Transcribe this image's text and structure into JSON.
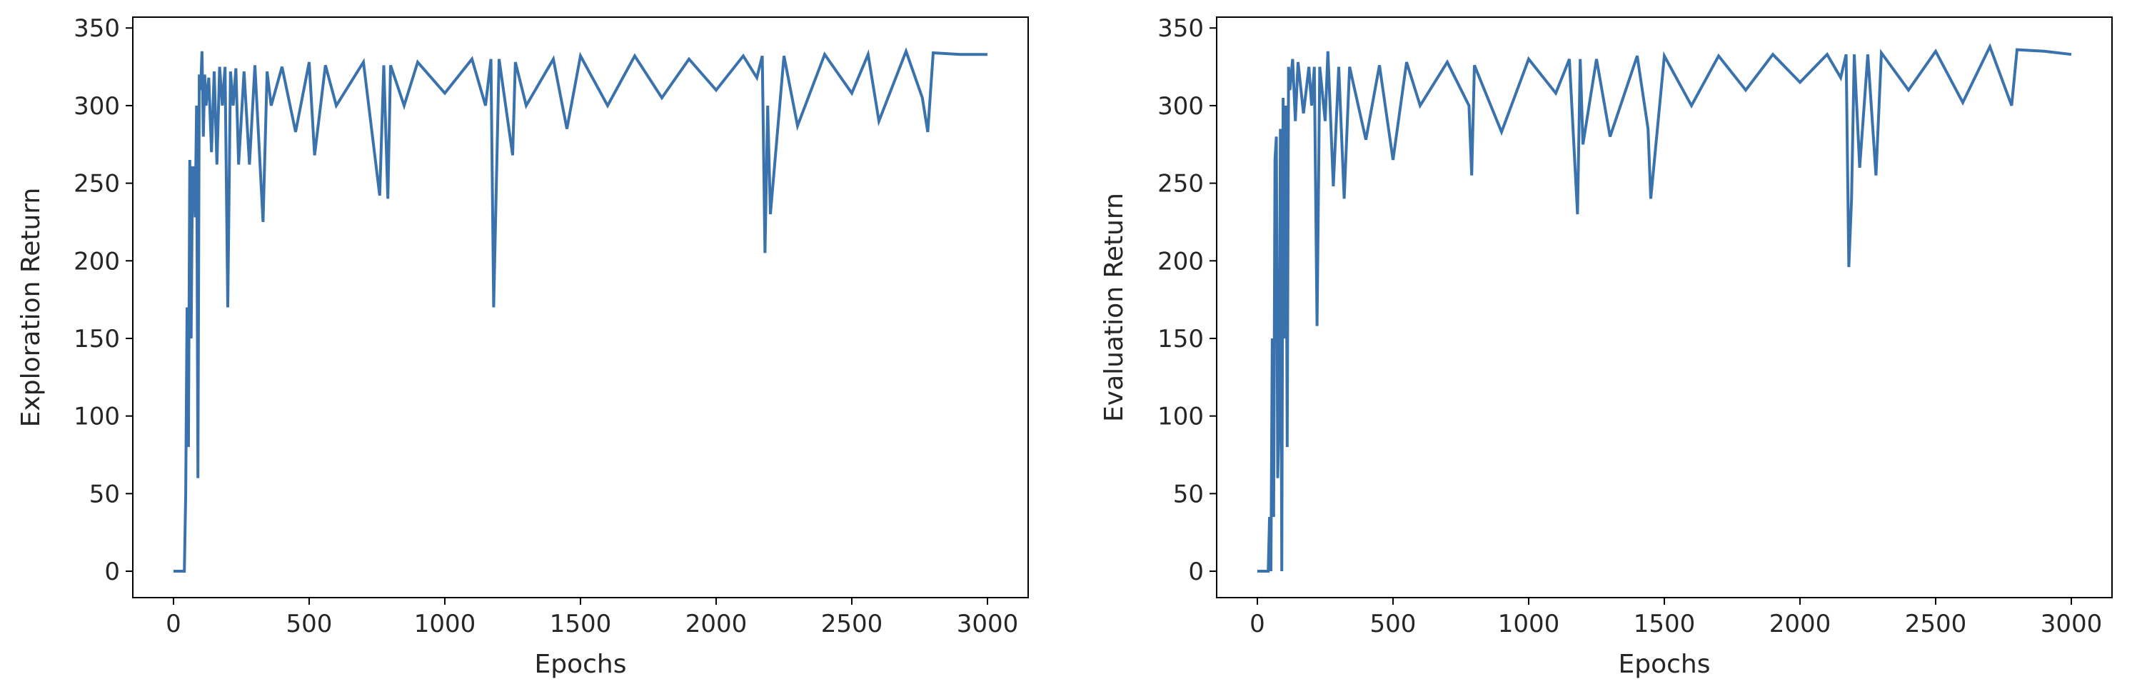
{
  "chart_data": [
    {
      "type": "line",
      "xlabel": "Epochs",
      "ylabel": "Exploration Return",
      "xlim": [
        -150,
        3150
      ],
      "ylim": [
        -17,
        357
      ],
      "xticks": [
        0,
        500,
        1000,
        1500,
        2000,
        2500,
        3000
      ],
      "yticks": [
        0,
        50,
        100,
        150,
        200,
        250,
        300,
        350
      ],
      "grid": false,
      "line_color": "#3a72ae",
      "series": [
        {
          "x": [
            0,
            20,
            40,
            45,
            50,
            55,
            60,
            65,
            70,
            75,
            80,
            85,
            90,
            95,
            100,
            105,
            110,
            115,
            120,
            130,
            140,
            150,
            160,
            170,
            180,
            190,
            200,
            210,
            220,
            230,
            240,
            260,
            280,
            300,
            330,
            345,
            360,
            400,
            450,
            500,
            520,
            560,
            600,
            700,
            760,
            775,
            790,
            800,
            850,
            900,
            1000,
            1100,
            1150,
            1170,
            1180,
            1200,
            1250,
            1260,
            1300,
            1400,
            1450,
            1500,
            1600,
            1700,
            1800,
            1900,
            2000,
            2100,
            2150,
            2170,
            2180,
            2190,
            2200,
            2250,
            2300,
            2400,
            2500,
            2560,
            2600,
            2700,
            2760,
            2780,
            2800,
            2900,
            3000
          ],
          "values": [
            0,
            0,
            0,
            50,
            170,
            80,
            265,
            150,
            260,
            260,
            228,
            300,
            60,
            320,
            310,
            335,
            280,
            320,
            300,
            318,
            270,
            322,
            262,
            325,
            300,
            325,
            170,
            322,
            300,
            324,
            262,
            322,
            262,
            326,
            225,
            322,
            300,
            325,
            283,
            328,
            268,
            326,
            300,
            328,
            242,
            326,
            240,
            326,
            300,
            328,
            308,
            330,
            300,
            330,
            170,
            330,
            268,
            328,
            300,
            330,
            285,
            332,
            300,
            332,
            305,
            330,
            310,
            332,
            318,
            332,
            205,
            300,
            230,
            332,
            287,
            333,
            308,
            333,
            290,
            335,
            305,
            283,
            334,
            333,
            333
          ]
        }
      ]
    },
    {
      "type": "line",
      "xlabel": "Epochs",
      "ylabel": "Evaluation Return",
      "xlim": [
        -150,
        3150
      ],
      "ylim": [
        -17,
        357
      ],
      "xticks": [
        0,
        500,
        1000,
        1500,
        2000,
        2500,
        3000
      ],
      "yticks": [
        0,
        50,
        100,
        150,
        200,
        250,
        300,
        350
      ],
      "grid": false,
      "line_color": "#3a72ae",
      "series": [
        {
          "x": [
            0,
            20,
            40,
            45,
            50,
            55,
            60,
            65,
            70,
            75,
            80,
            85,
            90,
            95,
            100,
            105,
            110,
            115,
            120,
            130,
            140,
            150,
            170,
            190,
            200,
            210,
            220,
            230,
            250,
            260,
            280,
            300,
            320,
            340,
            400,
            450,
            500,
            550,
            600,
            700,
            780,
            790,
            800,
            900,
            1000,
            1100,
            1150,
            1180,
            1190,
            1200,
            1250,
            1300,
            1400,
            1440,
            1450,
            1500,
            1600,
            1700,
            1800,
            1900,
            2000,
            2100,
            2150,
            2170,
            2180,
            2190,
            2200,
            2220,
            2250,
            2280,
            2300,
            2400,
            2500,
            2600,
            2700,
            2780,
            2800,
            2900,
            3000
          ],
          "values": [
            0,
            0,
            0,
            35,
            0,
            150,
            35,
            265,
            280,
            60,
            100,
            285,
            0,
            305,
            150,
            300,
            80,
            325,
            310,
            330,
            290,
            328,
            295,
            325,
            300,
            325,
            158,
            325,
            290,
            335,
            248,
            325,
            240,
            325,
            278,
            326,
            265,
            328,
            300,
            328,
            300,
            255,
            326,
            283,
            330,
            308,
            330,
            230,
            330,
            275,
            330,
            280,
            332,
            285,
            240,
            332,
            300,
            332,
            310,
            333,
            315,
            333,
            318,
            333,
            196,
            240,
            333,
            260,
            333,
            255,
            334,
            310,
            335,
            302,
            338,
            300,
            336,
            335,
            333
          ]
        }
      ]
    }
  ]
}
